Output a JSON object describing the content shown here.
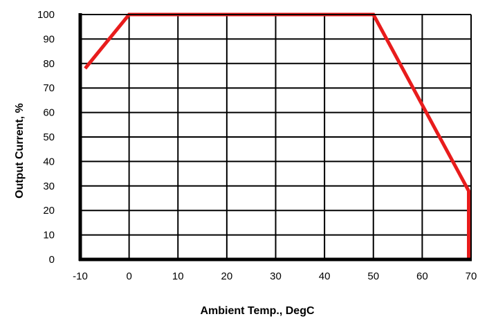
{
  "chart_data": {
    "type": "line",
    "title": "",
    "xlabel": "Ambient Temp., DegC",
    "ylabel": "Output Current, %",
    "xlim": [
      -10,
      70
    ],
    "ylim": [
      0,
      100
    ],
    "x_ticks": [
      "-10",
      "0",
      "10",
      "20",
      "30",
      "40",
      "50",
      "60",
      "70"
    ],
    "y_ticks": [
      "0",
      "10",
      "20",
      "30",
      "40",
      "50",
      "60",
      "70",
      "80",
      "90",
      "100"
    ],
    "grid": true,
    "series": [
      {
        "color": "#e81c1c",
        "x": [
          -9,
          0,
          50,
          69.5,
          69.5
        ],
        "y": [
          78,
          100,
          100,
          28,
          0
        ]
      }
    ]
  }
}
